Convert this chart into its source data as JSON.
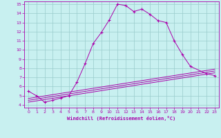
{
  "xlabel": "Windchill (Refroidissement éolien,°C)",
  "bg_color": "#c8f0f0",
  "line_color": "#aa00aa",
  "grid_color": "#99cccc",
  "xlim": [
    -0.5,
    23.5
  ],
  "ylim": [
    3.7,
    15.3
  ],
  "xticks": [
    0,
    1,
    2,
    3,
    4,
    5,
    6,
    7,
    8,
    9,
    10,
    11,
    12,
    13,
    14,
    15,
    16,
    17,
    18,
    19,
    20,
    21,
    22,
    23
  ],
  "yticks": [
    4,
    5,
    6,
    7,
    8,
    9,
    10,
    11,
    12,
    13,
    14,
    15
  ],
  "line1_x": [
    0,
    1,
    2,
    3,
    4,
    5,
    6,
    7,
    8,
    9,
    10,
    11,
    12,
    13,
    14,
    15,
    16,
    17,
    18,
    19,
    20,
    22,
    23
  ],
  "line1_y": [
    5.5,
    5.0,
    4.3,
    4.5,
    4.75,
    5.0,
    6.5,
    8.5,
    10.7,
    11.9,
    13.3,
    15.0,
    14.85,
    14.2,
    14.45,
    13.9,
    13.2,
    13.0,
    11.0,
    9.5,
    8.2,
    7.4,
    7.2
  ],
  "line2_x": [
    0,
    23
  ],
  "line2_y": [
    4.3,
    7.5
  ],
  "line3_x": [
    0,
    23
  ],
  "line3_y": [
    4.5,
    7.7
  ],
  "line4_x": [
    0,
    23
  ],
  "line4_y": [
    4.7,
    7.9
  ]
}
